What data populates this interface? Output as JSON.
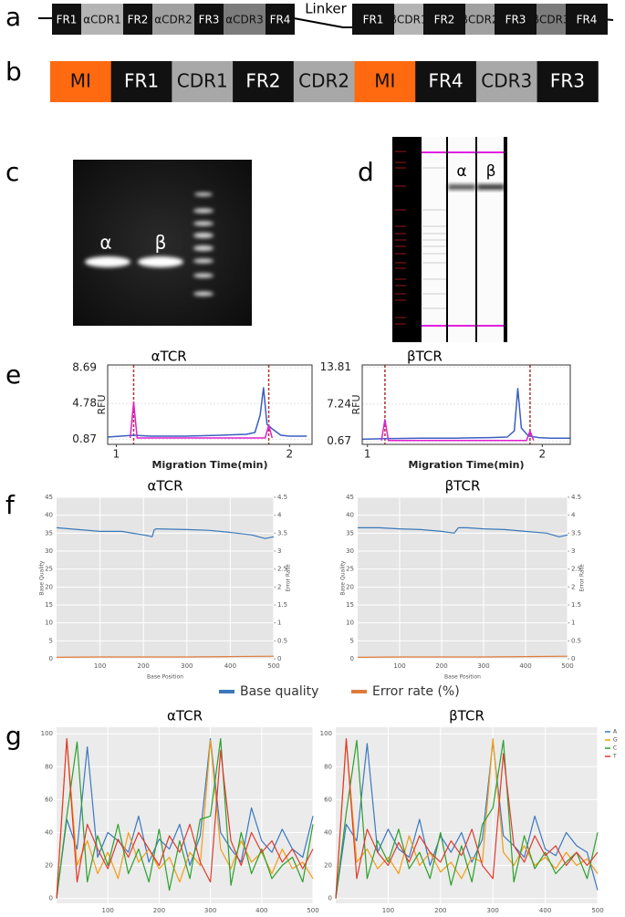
{
  "panel_labels": [
    "a",
    "b",
    "c",
    "d",
    "e",
    "f",
    "g"
  ],
  "construct_a": {
    "linker": "Linker",
    "segments": [
      {
        "label": "FR1",
        "color": "#111111"
      },
      {
        "label": "αCDR1",
        "color": "#b4b4b4"
      },
      {
        "label": "FR2",
        "color": "#111111"
      },
      {
        "label": "αCDR2",
        "color": "#a0a0a0"
      },
      {
        "label": "FR3",
        "color": "#111111"
      },
      {
        "label": "αCDR3",
        "color": "#7c7c7c"
      },
      {
        "label": "FR4",
        "color": "#111111"
      },
      {
        "label": "FR1",
        "color": "#111111"
      },
      {
        "label": "βCDR1",
        "color": "#b4b4b4"
      },
      {
        "label": "FR2",
        "color": "#111111"
      },
      {
        "label": "βCDR2",
        "color": "#a0a0a0"
      },
      {
        "label": "FR3",
        "color": "#111111"
      },
      {
        "label": "βCDR3",
        "color": "#7c7c7c"
      },
      {
        "label": "FR4",
        "color": "#111111"
      }
    ]
  },
  "construct_b": {
    "segments": [
      {
        "label": "MI",
        "color": "#ff6a10"
      },
      {
        "label": "FR1",
        "color": "#111111"
      },
      {
        "label": "CDR1",
        "color": "#a8a8a8"
      },
      {
        "label": "FR2",
        "color": "#111111"
      },
      {
        "label": "CDR2",
        "color": "#a8a8a8"
      },
      {
        "label": "MI",
        "color": "#ff6a10"
      },
      {
        "label": "FR4",
        "color": "#111111"
      },
      {
        "label": "CDR3",
        "color": "#a8a8a8"
      },
      {
        "label": "FR3",
        "color": "#111111"
      }
    ]
  },
  "gel_c": {
    "lanes": [
      "α",
      "β"
    ]
  },
  "gel_d": {
    "lanes": [
      "α",
      "β"
    ]
  },
  "chart_data": [
    {
      "type": "line",
      "title": "αTCR",
      "xlabel": "Migration Time(min)",
      "ylabel": "RFU",
      "xlim": [
        0.95,
        2.13
      ],
      "ylim": [
        0.3,
        9.0
      ],
      "xticks": [
        1,
        2
      ],
      "yticks": [
        0.87,
        4.78,
        8.69
      ],
      "grid": true,
      "vlines": [
        1.1,
        1.88
      ],
      "vline_color": "#b03030",
      "series": [
        {
          "color": "#3b5fc0",
          "x": [
            0.95,
            1.1,
            1.2,
            1.4,
            1.6,
            1.75,
            1.8,
            1.83,
            1.85,
            1.87,
            1.9,
            1.95,
            2.0,
            2.1
          ],
          "values": [
            1.1,
            1.3,
            1.2,
            1.2,
            1.3,
            1.4,
            1.6,
            3.5,
            6.5,
            2.5,
            2.0,
            1.3,
            1.2,
            1.2
          ]
        },
        {
          "color": "#e020d0",
          "x": [
            1.08,
            1.1,
            1.12,
            1.86,
            1.88,
            1.9
          ],
          "values": [
            1.0,
            4.9,
            1.0,
            1.0,
            2.4,
            1.0
          ]
        }
      ]
    },
    {
      "type": "line",
      "title": "βTCR",
      "xlabel": "Migration Time(min)",
      "ylabel": "RFU",
      "xlim": [
        0.97,
        2.16
      ],
      "ylim": [
        0.1,
        14.2
      ],
      "xticks": [
        1,
        2
      ],
      "yticks": [
        0.67,
        7.24,
        13.81
      ],
      "grid": true,
      "vlines": [
        1.1,
        1.93
      ],
      "vline_color": "#b03030",
      "series": [
        {
          "color": "#3b5fc0",
          "x": [
            0.97,
            1.1,
            1.3,
            1.5,
            1.7,
            1.8,
            1.84,
            1.86,
            1.88,
            1.92,
            1.98,
            2.05,
            2.16
          ],
          "values": [
            1.0,
            1.1,
            1.2,
            1.2,
            1.3,
            1.4,
            2.5,
            10.0,
            3.0,
            1.6,
            1.3,
            1.2,
            1.2
          ]
        },
        {
          "color": "#e020d0",
          "x": [
            1.08,
            1.1,
            1.12,
            1.91,
            1.93,
            1.95
          ],
          "values": [
            0.8,
            4.5,
            0.8,
            0.8,
            2.5,
            0.8
          ]
        }
      ]
    },
    {
      "type": "line",
      "title": "αTCR",
      "xlabel": "Base Position",
      "ylabel": "Base Quality",
      "y2label": "Error Rate",
      "xlim": [
        0,
        500
      ],
      "ylim": [
        0,
        45
      ],
      "y2lim": [
        0,
        4.5
      ],
      "xticks": [
        100,
        200,
        300,
        400,
        500
      ],
      "yticks": [
        0,
        5,
        10,
        15,
        20,
        25,
        30,
        35,
        40,
        45
      ],
      "y2ticks": [
        0,
        0.5,
        1,
        1.5,
        2,
        2.5,
        3,
        3.5,
        4,
        4.5
      ],
      "grid": true,
      "background": "#e5e5e5",
      "series": [
        {
          "name": "Base quality",
          "color": "#3a78b8",
          "x": [
            0,
            50,
            100,
            150,
            200,
            210,
            220,
            225,
            230,
            300,
            350,
            400,
            450,
            480,
            500
          ],
          "values": [
            36.5,
            36,
            35.5,
            35.5,
            34.5,
            34.3,
            34,
            36,
            36.2,
            36,
            35.8,
            35.2,
            34.5,
            33.5,
            34
          ]
        },
        {
          "name": "Error rate (%)",
          "color": "#e07b39",
          "axis": "y2",
          "x": [
            0,
            100,
            200,
            300,
            400,
            500
          ],
          "values": [
            0.04,
            0.05,
            0.05,
            0.05,
            0.06,
            0.07
          ]
        }
      ]
    },
    {
      "type": "line",
      "title": "βTCR",
      "xlabel": "Base Position",
      "ylabel": "Base Quality",
      "y2label": "Error Rate",
      "xlim": [
        0,
        500
      ],
      "ylim": [
        0,
        45
      ],
      "y2lim": [
        0,
        4.5
      ],
      "xticks": [
        100,
        200,
        300,
        400,
        500
      ],
      "yticks": [
        0,
        5,
        10,
        15,
        20,
        25,
        30,
        35,
        40,
        45
      ],
      "y2ticks": [
        0,
        0.5,
        1,
        1.5,
        2,
        2.5,
        3,
        3.5,
        4,
        4.5
      ],
      "grid": true,
      "background": "#e5e5e5",
      "series": [
        {
          "color": "#3a78b8",
          "x": [
            0,
            50,
            100,
            150,
            200,
            230,
            240,
            250,
            260,
            300,
            350,
            400,
            450,
            480,
            500
          ],
          "values": [
            36.5,
            36.5,
            36.2,
            36,
            35.5,
            35,
            36.5,
            36.5,
            36.5,
            36.2,
            36,
            35.5,
            35,
            34,
            34.5
          ]
        },
        {
          "color": "#e07b39",
          "axis": "y2",
          "x": [
            0,
            100,
            200,
            300,
            400,
            500
          ],
          "values": [
            0.04,
            0.05,
            0.05,
            0.05,
            0.06,
            0.07
          ]
        }
      ]
    },
    {
      "type": "line",
      "title": "αTCR",
      "xlim": [
        0,
        500
      ],
      "ylim": [
        -3,
        104
      ],
      "xticks": [
        100,
        200,
        300,
        400,
        500
      ],
      "yticks": [
        0,
        20,
        40,
        60,
        80,
        100
      ],
      "grid": true,
      "background": "#ebebeb",
      "x": [
        0,
        20,
        40,
        60,
        80,
        100,
        120,
        140,
        160,
        180,
        200,
        220,
        240,
        260,
        280,
        300,
        320,
        340,
        360,
        380,
        400,
        420,
        440,
        460,
        480,
        500
      ],
      "series": [
        {
          "color": "#3a78c0",
          "values": [
            0,
            48,
            30,
            92,
            25,
            40,
            35,
            28,
            50,
            22,
            36,
            30,
            45,
            20,
            38,
            97,
            40,
            30,
            22,
            55,
            35,
            28,
            42,
            30,
            25,
            50
          ]
        },
        {
          "color": "#f39c12",
          "values": [
            0,
            97,
            20,
            35,
            15,
            28,
            12,
            40,
            22,
            30,
            18,
            25,
            10,
            28,
            20,
            96,
            30,
            18,
            35,
            22,
            28,
            15,
            30,
            18,
            22,
            12
          ]
        },
        {
          "color": "#2ca02c",
          "values": [
            0,
            50,
            95,
            10,
            38,
            20,
            45,
            15,
            30,
            10,
            42,
            5,
            35,
            12,
            48,
            50,
            97,
            8,
            40,
            15,
            30,
            12,
            20,
            25,
            10,
            45
          ]
        },
        {
          "color": "#e03a2e",
          "values": [
            0,
            97,
            10,
            45,
            30,
            18,
            36,
            25,
            40,
            30,
            20,
            38,
            28,
            45,
            22,
            10,
            90,
            35,
            20,
            40,
            28,
            35,
            22,
            30,
            18,
            30
          ]
        }
      ]
    },
    {
      "type": "line",
      "title": "βTCR",
      "xlim": [
        0,
        500
      ],
      "ylim": [
        -3,
        104
      ],
      "xticks": [
        100,
        200,
        300,
        400,
        500
      ],
      "yticks": [
        0,
        20,
        40,
        60,
        80,
        100
      ],
      "grid": true,
      "background": "#ebebeb",
      "legend": "right",
      "x": [
        0,
        20,
        40,
        60,
        80,
        100,
        120,
        140,
        160,
        180,
        200,
        220,
        240,
        260,
        280,
        300,
        320,
        340,
        360,
        380,
        400,
        420,
        440,
        460,
        480,
        500
      ],
      "series": [
        {
          "name": "A",
          "color": "#3a78c0",
          "values": [
            0,
            45,
            35,
            94,
            28,
            42,
            30,
            25,
            48,
            20,
            38,
            28,
            40,
            22,
            36,
            95,
            38,
            32,
            25,
            50,
            30,
            26,
            40,
            32,
            28,
            5
          ]
        },
        {
          "name": "G",
          "color": "#f39c12",
          "values": [
            0,
            96,
            22,
            30,
            18,
            25,
            15,
            38,
            20,
            28,
            16,
            22,
            12,
            25,
            22,
            97,
            28,
            20,
            32,
            20,
            25,
            18,
            28,
            20,
            24,
            15
          ]
        },
        {
          "name": "C",
          "color": "#2ca02c",
          "values": [
            0,
            52,
            96,
            12,
            35,
            22,
            42,
            18,
            28,
            12,
            40,
            8,
            32,
            10,
            45,
            55,
            96,
            10,
            38,
            18,
            28,
            15,
            22,
            28,
            12,
            40
          ]
        },
        {
          "name": "T",
          "color": "#e03a2e",
          "values": [
            0,
            97,
            12,
            42,
            28,
            20,
            34,
            22,
            38,
            28,
            22,
            35,
            26,
            42,
            20,
            12,
            88,
            32,
            22,
            38,
            26,
            32,
            20,
            28,
            20,
            28
          ]
        }
      ]
    }
  ]
}
